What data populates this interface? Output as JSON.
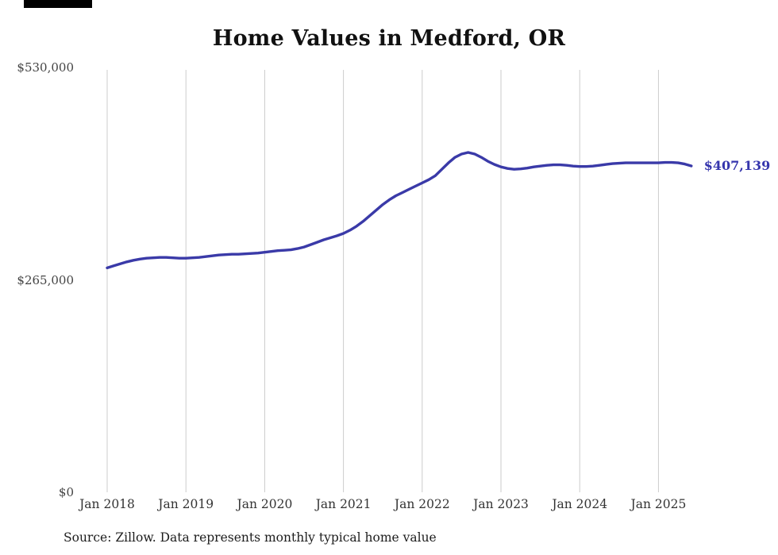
{
  "title": "Home Values in Medford, OR",
  "source_note": "Source: Zillow. Data represents monthly typical home value",
  "latest_value_label": "$407,139",
  "colors": {
    "line": "#3a3aa8",
    "latest_label": "#3535ad",
    "grid": "#cccccc",
    "title_text": "#111111",
    "axis_text": "#333333"
  },
  "chart_data": {
    "type": "line",
    "title": "Home Values in Medford, OR",
    "ylabel": "",
    "xlabel": "",
    "ylim": [
      0,
      530000
    ],
    "grid": "vertical-only",
    "legend": "none",
    "y_ticks": [
      {
        "value": 0,
        "label": "$0"
      },
      {
        "value": 265000,
        "label": "$265,000"
      },
      {
        "value": 530000,
        "label": "$530,000"
      }
    ],
    "x_tick_labels": [
      "Jan 2018",
      "Jan 2019",
      "Jan 2020",
      "Jan 2021",
      "Jan 2022",
      "Jan 2023",
      "Jan 2024",
      "Jan 2025"
    ],
    "x_start_month": "2018-01",
    "x_end_month": "2025-06",
    "latest_value": 407139,
    "series": [
      {
        "name": "Monthly typical home value",
        "monthly_values": [
          280000,
          282500,
          285000,
          287500,
          289500,
          291000,
          292000,
          292500,
          293000,
          293000,
          292500,
          292000,
          292000,
          292500,
          293000,
          294000,
          295000,
          296000,
          296500,
          297000,
          297000,
          297500,
          298000,
          298500,
          299500,
          300500,
          301500,
          302000,
          302500,
          304000,
          306000,
          309000,
          312000,
          315000,
          317500,
          320000,
          323000,
          327000,
          332000,
          338000,
          345000,
          352000,
          359000,
          365000,
          370000,
          374000,
          378000,
          382000,
          386000,
          390000,
          395000,
          403000,
          411000,
          418000,
          422000,
          424000,
          422000,
          418000,
          413000,
          409000,
          406000,
          404000,
          403000,
          403500,
          404500,
          406000,
          407000,
          408000,
          408500,
          408500,
          408000,
          407000,
          406500,
          406500,
          407000,
          408000,
          409000,
          410000,
          410500,
          411000,
          411000,
          411000,
          411000,
          411000,
          411000,
          411500,
          411500,
          411000,
          409500,
          407139
        ]
      }
    ]
  }
}
